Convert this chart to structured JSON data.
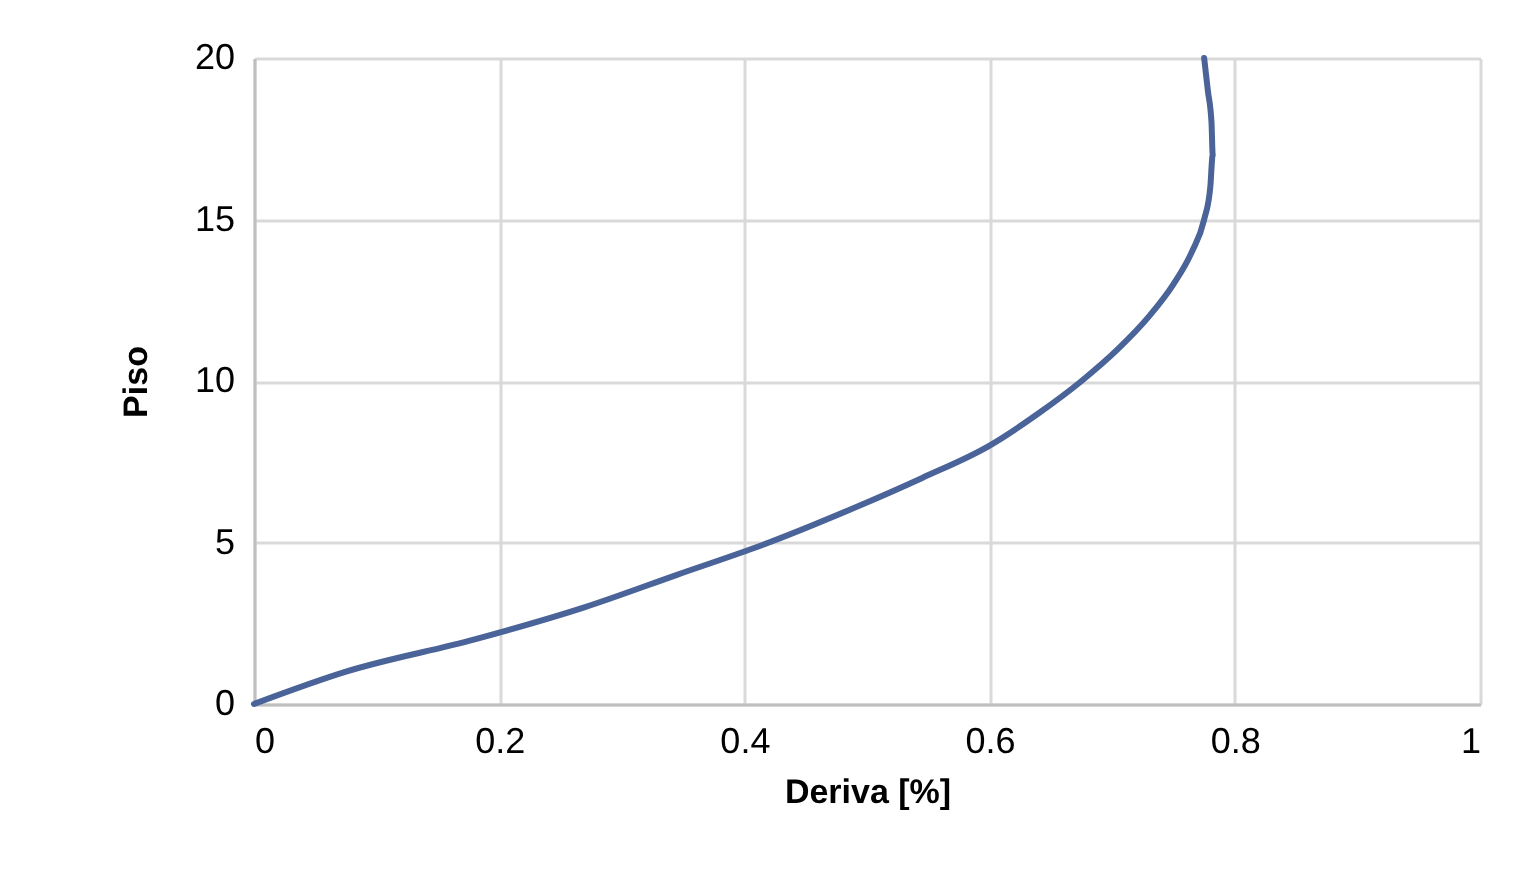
{
  "chart_data": {
    "type": "line",
    "xlabel": "Deriva [%]",
    "ylabel": "Piso",
    "series": [
      {
        "color": "#4a6398",
        "x": [
          0,
          0.075,
          0.18,
          0.27,
          0.345,
          0.42,
          0.485,
          0.545,
          0.6,
          0.64,
          0.675,
          0.705,
          0.73,
          0.75,
          0.765,
          0.775,
          0.78,
          0.782,
          0.781,
          0.778,
          0.775
        ],
        "values": [
          0,
          1,
          2,
          3,
          4,
          5,
          6,
          7,
          8,
          9,
          10,
          11,
          12,
          13,
          14,
          15,
          16,
          17,
          18,
          19,
          20
        ]
      }
    ],
    "xlim": [
      0,
      1
    ],
    "xticks": [
      0,
      0.2,
      0.4,
      0.6,
      0.8,
      1
    ],
    "ylim": [
      0,
      20
    ],
    "yticks": [
      0,
      5,
      10,
      15,
      20
    ],
    "grid": true,
    "marker": "none",
    "line_style": "solid"
  }
}
